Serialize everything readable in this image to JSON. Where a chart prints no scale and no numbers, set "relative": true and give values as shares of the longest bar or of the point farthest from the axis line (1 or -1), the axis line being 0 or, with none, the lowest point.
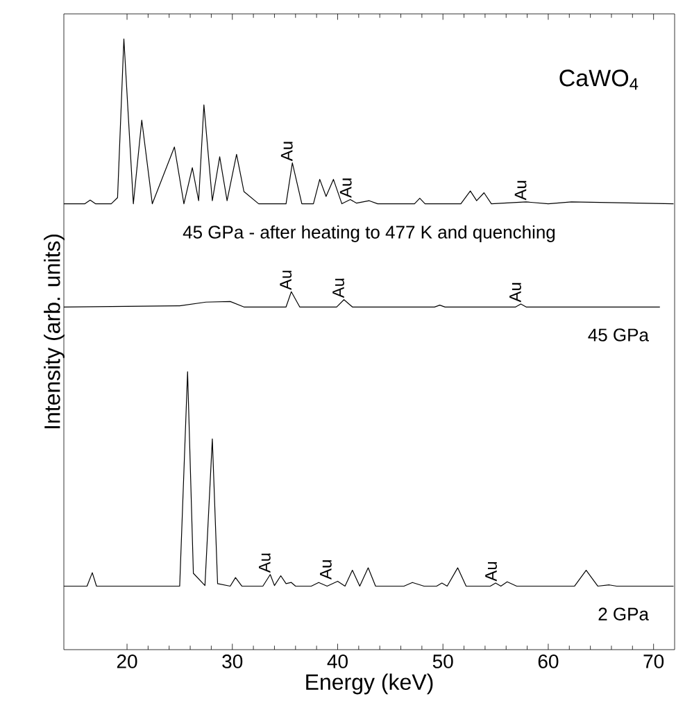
{
  "chart_data": {
    "type": "line",
    "relative": true,
    "xlabel": "Energy (keV)",
    "ylabel": "Intensity (arb. units)",
    "xlim": [
      14,
      72
    ],
    "xticks": [
      20,
      30,
      40,
      50,
      60,
      70
    ],
    "grid": false,
    "legend": false,
    "line_style": "solid",
    "annotations": [
      "CaWO$_{4}$",
      {
        "text": "Au",
        "x": 35.7,
        "y": 0.797
      },
      {
        "text": "Au",
        "x": 41.3,
        "y": 0.737
      },
      {
        "text": "Au",
        "x": 57.9,
        "y": 0.733
      },
      {
        "text": "Au",
        "x": 35.6,
        "y": 0.586
      },
      {
        "text": "Au",
        "x": 40.6,
        "y": 0.573
      },
      {
        "text": "Au",
        "x": 57.4,
        "y": 0.566
      },
      {
        "text": "Au",
        "x": 33.6,
        "y": 0.123
      },
      {
        "text": "Au",
        "x": 39.4,
        "y": 0.112
      },
      {
        "text": "Au",
        "x": 55.1,
        "y": 0.109
      }
    ],
    "series": [
      {
        "name": "45 GPa - after heating to 477 K and quenching",
        "color": "#000000",
        "x": [
          14.0,
          16.0,
          16.5,
          17.0,
          18.5,
          19.1,
          19.7,
          20.6,
          21.4,
          22.4,
          24.5,
          25.4,
          26.2,
          26.8,
          27.3,
          28.1,
          28.8,
          29.5,
          30.4,
          31.1,
          32.5,
          35.1,
          35.7,
          36.6,
          37.7,
          38.3,
          38.9,
          39.6,
          40.4,
          41.2,
          41.8,
          43.0,
          43.8,
          47.3,
          47.8,
          48.3,
          51.7,
          52.6,
          53.2,
          53.9,
          54.6,
          57.9,
          60.0,
          62.2,
          65.8,
          71.9
        ],
        "values": [
          0.73,
          0.73,
          0.736,
          0.73,
          0.73,
          0.74,
          1.0,
          0.73,
          0.867,
          0.73,
          0.823,
          0.73,
          0.789,
          0.735,
          0.892,
          0.735,
          0.807,
          0.735,
          0.811,
          0.75,
          0.73,
          0.73,
          0.797,
          0.73,
          0.73,
          0.77,
          0.742,
          0.77,
          0.73,
          0.737,
          0.731,
          0.735,
          0.73,
          0.73,
          0.739,
          0.73,
          0.73,
          0.751,
          0.735,
          0.748,
          0.73,
          0.733,
          0.73,
          0.733,
          0.732,
          0.73
        ]
      },
      {
        "name": "45 GPa",
        "color": "#000000",
        "x": [
          14.0,
          20.0,
          25.0,
          27.5,
          29.8,
          31.1,
          35.1,
          35.6,
          36.4,
          39.9,
          40.6,
          41.4,
          49.2,
          49.7,
          50.2,
          56.9,
          57.4,
          57.9,
          70.6
        ],
        "values": [
          0.561,
          0.562,
          0.563,
          0.569,
          0.57,
          0.561,
          0.561,
          0.586,
          0.561,
          0.561,
          0.573,
          0.561,
          0.561,
          0.564,
          0.561,
          0.561,
          0.566,
          0.561,
          0.561
        ]
      },
      {
        "name": "2 GPa",
        "color": "#000000",
        "x": [
          14.0,
          16.2,
          16.7,
          17.1,
          25.0,
          25.75,
          26.3,
          27.4,
          28.1,
          28.6,
          29.8,
          30.3,
          30.9,
          32.9,
          33.6,
          34.0,
          34.6,
          35.1,
          35.6,
          36.0,
          37.5,
          38.2,
          39.0,
          40.0,
          40.7,
          41.4,
          42.1,
          42.9,
          43.6,
          46.3,
          47.1,
          48.2,
          49.4,
          49.9,
          50.4,
          51.4,
          52.2,
          54.5,
          55.0,
          55.5,
          56.1,
          57.0,
          62.5,
          63.6,
          64.7,
          65.8,
          66.5,
          71.9
        ],
        "values": [
          0.104,
          0.104,
          0.126,
          0.104,
          0.104,
          0.455,
          0.125,
          0.105,
          0.345,
          0.108,
          0.104,
          0.118,
          0.104,
          0.104,
          0.123,
          0.105,
          0.121,
          0.108,
          0.11,
          0.104,
          0.104,
          0.11,
          0.104,
          0.112,
          0.104,
          0.13,
          0.104,
          0.134,
          0.104,
          0.104,
          0.11,
          0.104,
          0.104,
          0.109,
          0.104,
          0.134,
          0.104,
          0.104,
          0.109,
          0.104,
          0.111,
          0.104,
          0.104,
          0.13,
          0.104,
          0.106,
          0.104,
          0.104
        ]
      }
    ]
  }
}
